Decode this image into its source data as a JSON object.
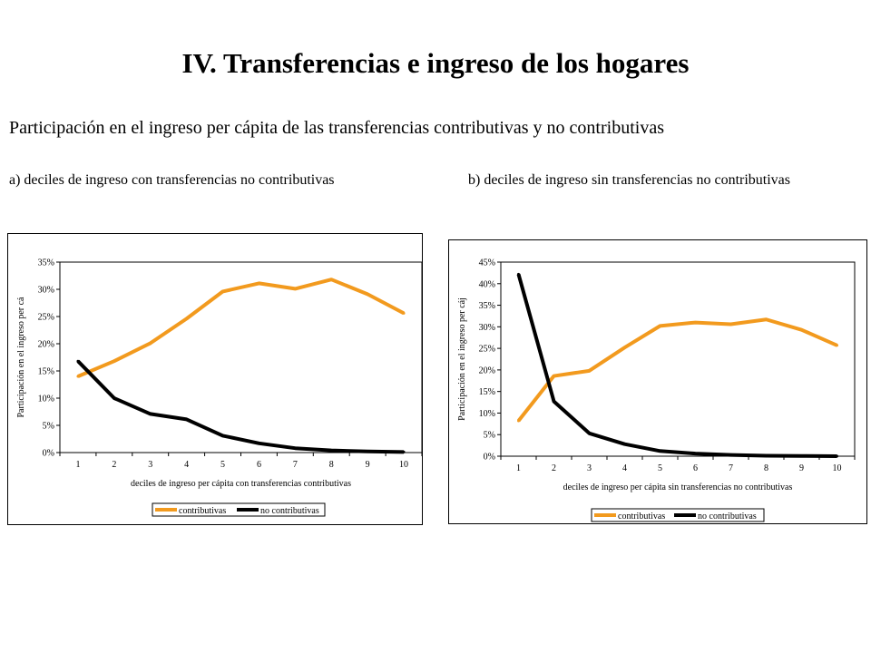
{
  "page": {
    "title": "IV.  Transferencias e ingreso de los hogares",
    "subtitle": "Participación en el ingreso per cápita de las transferencias contributivas y  no contributivas"
  },
  "panels": {
    "a_title": "a)  deciles de ingreso con transferencias no contributivas",
    "b_title": "b)  deciles de ingreso sin  transferencias no contributivas"
  },
  "colors": {
    "contributivas": "#f29a1e",
    "no_contributivas": "#000000"
  },
  "chart_data": [
    {
      "type": "line",
      "title": "",
      "xlabel": "deciles de ingreso per cápita con transferencias contributivas",
      "ylabel": "Participación en el ingreso per cá",
      "categories": [
        "1",
        "2",
        "3",
        "4",
        "5",
        "6",
        "7",
        "8",
        "9",
        "10"
      ],
      "ylim": [
        0,
        0.35
      ],
      "yticks": [
        "0%",
        "5%",
        "10%",
        "15%",
        "20%",
        "25%",
        "30%",
        "35%"
      ],
      "grid": false,
      "legend_position": "bottom",
      "series": [
        {
          "name": "contributivas",
          "values": [
            0.14,
            0.168,
            0.201,
            0.246,
            0.296,
            0.311,
            0.301,
            0.318,
            0.291,
            0.256
          ]
        },
        {
          "name": "no contributivas",
          "values": [
            0.168,
            0.1,
            0.071,
            0.061,
            0.031,
            0.017,
            0.008,
            0.004,
            0.002,
            0.001
          ]
        }
      ]
    },
    {
      "type": "line",
      "title": "",
      "xlabel": "deciles de ingreso per cápita sin transferencias no contributivas",
      "ylabel": "Participación en el ingreso per cáj",
      "categories": [
        "1",
        "2",
        "3",
        "4",
        "5",
        "6",
        "7",
        "8",
        "9",
        "10"
      ],
      "ylim": [
        0,
        0.45
      ],
      "yticks": [
        "0%",
        "5%",
        "10%",
        "15%",
        "20%",
        "25%",
        "30%",
        "35%",
        "40%",
        "45%"
      ],
      "grid": false,
      "legend_position": "bottom",
      "series": [
        {
          "name": "contributivas",
          "values": [
            0.082,
            0.186,
            0.198,
            0.252,
            0.302,
            0.31,
            0.306,
            0.317,
            0.293,
            0.257
          ]
        },
        {
          "name": "no contributivas",
          "values": [
            0.422,
            0.127,
            0.053,
            0.028,
            0.012,
            0.006,
            0.003,
            0.001,
            0.0005,
            0.0
          ]
        }
      ]
    }
  ]
}
